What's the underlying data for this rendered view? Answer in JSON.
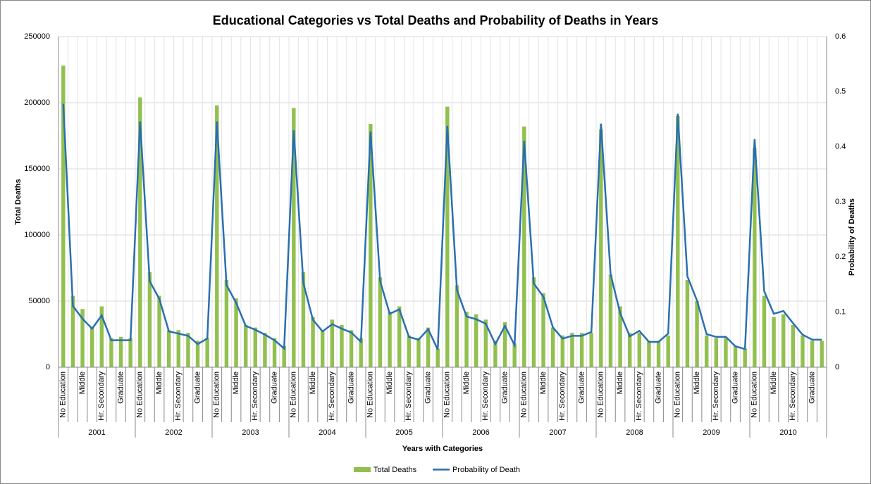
{
  "chart_data": {
    "type": "bar",
    "title": "Educational Categories vs Total Deaths and Probability of Deaths in Years",
    "x_label": "Years with Categories",
    "y_label": "Total Deaths",
    "y2_label": "Probability of Deaths",
    "groups": [
      "2001",
      "2002",
      "2003",
      "2004",
      "2005",
      "2006",
      "2007",
      "2008",
      "2009",
      "2010"
    ],
    "categories": [
      "No Education",
      null,
      "Middle",
      null,
      "Hr. Secondary",
      null,
      "Graduate",
      null,
      "No Education",
      null,
      "Middle",
      null,
      "Hr. Secondary",
      null,
      "Graduate",
      null,
      "No Education",
      null,
      "Middle",
      null,
      "Hr. Secondary",
      null,
      "Graduate",
      null,
      "No Education",
      null,
      "Middle",
      null,
      "Hr. Secondary",
      null,
      "Graduate",
      null,
      "No Education",
      null,
      "Middle",
      null,
      "Hr. Secondary",
      null,
      "Graduate",
      null,
      "No Education",
      null,
      "Middle",
      null,
      "Hr. Secondary",
      null,
      "Graduate",
      null,
      "No Education",
      null,
      "Middle",
      null,
      "Hr. Secondary",
      null,
      "Graduate",
      null,
      "No Education",
      null,
      "Middle",
      null,
      "Hr. Secondary",
      null,
      "Graduate",
      null,
      "No Education",
      null,
      "Middle",
      null,
      "Hr. Secondary",
      null,
      "Graduate",
      null,
      "No Education",
      null,
      "Middle",
      null,
      "Hr. Secondary",
      null,
      "Graduate",
      null
    ],
    "series": [
      {
        "name": "Total Deaths",
        "type": "bar",
        "color": "#92c050",
        "axis": "y",
        "values": [
          228000,
          54000,
          44000,
          30000,
          46000,
          22000,
          23000,
          22000,
          204000,
          72000,
          54000,
          28000,
          28000,
          26000,
          20000,
          22000,
          198000,
          66000,
          52000,
          32000,
          30000,
          26000,
          22000,
          16000,
          196000,
          72000,
          38000,
          28000,
          36000,
          32000,
          28000,
          22000,
          184000,
          68000,
          42000,
          46000,
          24000,
          22000,
          30000,
          14000,
          197000,
          62000,
          42000,
          40000,
          36000,
          20000,
          34000,
          18000,
          182000,
          68000,
          56000,
          30000,
          24000,
          26000,
          26000,
          26000,
          180000,
          70000,
          46000,
          26000,
          26000,
          20000,
          20000,
          24000,
          190000,
          66000,
          50000,
          24000,
          22000,
          22000,
          16000,
          14000,
          166000,
          54000,
          38000,
          40000,
          32000,
          24000,
          20000,
          20000
        ]
      },
      {
        "name": "Probability of Death",
        "type": "line",
        "color": "#2a6fb0",
        "axis": "y2",
        "values": [
          0.478,
          0.111,
          0.088,
          0.07,
          0.094,
          0.049,
          0.049,
          0.049,
          0.446,
          0.156,
          0.124,
          0.065,
          0.061,
          0.057,
          0.042,
          0.052,
          0.446,
          0.149,
          0.117,
          0.075,
          0.068,
          0.059,
          0.049,
          0.034,
          0.43,
          0.153,
          0.086,
          0.065,
          0.078,
          0.07,
          0.063,
          0.046,
          0.428,
          0.156,
          0.097,
          0.105,
          0.055,
          0.05,
          0.069,
          0.032,
          0.438,
          0.14,
          0.092,
          0.087,
          0.079,
          0.042,
          0.075,
          0.04,
          0.411,
          0.152,
          0.128,
          0.072,
          0.052,
          0.057,
          0.057,
          0.064,
          0.442,
          0.169,
          0.098,
          0.056,
          0.066,
          0.046,
          0.046,
          0.061,
          0.46,
          0.165,
          0.121,
          0.06,
          0.055,
          0.055,
          0.038,
          0.033,
          0.414,
          0.138,
          0.097,
          0.102,
          0.08,
          0.059,
          0.05,
          0.05
        ]
      }
    ],
    "ylim": [
      0,
      250000
    ],
    "yticks": [
      0,
      50000,
      100000,
      150000,
      200000,
      250000
    ],
    "y2lim": [
      0,
      0.6
    ],
    "y2ticks": [
      0,
      0.1,
      0.2,
      0.3,
      0.4,
      0.5,
      0.6
    ],
    "grid": true,
    "legend": "bottom"
  }
}
